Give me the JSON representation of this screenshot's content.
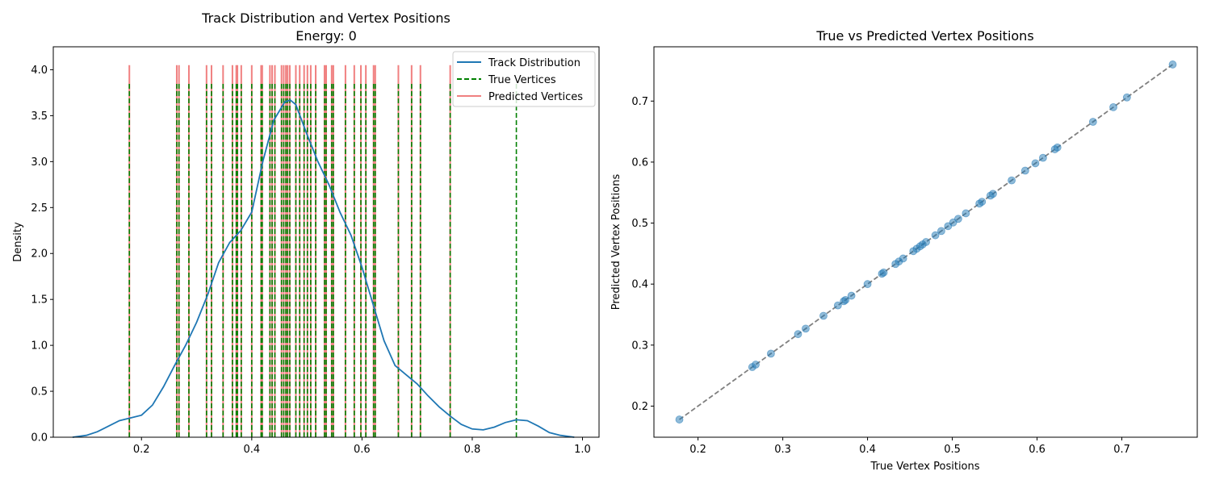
{
  "chart_data": [
    {
      "type": "line",
      "title": "Track Distribution and Vertex Positions",
      "subtitle": "Energy: 0",
      "xlabel": "",
      "ylabel": "Density",
      "xlim": [
        0.04,
        1.03
      ],
      "ylim": [
        0,
        4.25
      ],
      "xticks": [
        "0.2",
        "0.4",
        "0.6",
        "0.8",
        "1.0"
      ],
      "yticks": [
        "0.0",
        "0.5",
        "1.0",
        "1.5",
        "2.0",
        "2.5",
        "3.0",
        "3.5",
        "4.0"
      ],
      "legend_position": "top-right",
      "legend": [
        "Track Distribution",
        "True Vertices",
        "Predicted Vertices"
      ],
      "colors": {
        "kde": "#1f77b4",
        "true": "#008000",
        "pred": "#f08080"
      },
      "kde": {
        "x": [
          0.075,
          0.1,
          0.12,
          0.14,
          0.16,
          0.18,
          0.2,
          0.22,
          0.24,
          0.26,
          0.28,
          0.3,
          0.32,
          0.34,
          0.36,
          0.38,
          0.4,
          0.42,
          0.44,
          0.46,
          0.47,
          0.48,
          0.5,
          0.52,
          0.54,
          0.56,
          0.58,
          0.6,
          0.62,
          0.64,
          0.66,
          0.68,
          0.7,
          0.72,
          0.74,
          0.76,
          0.78,
          0.8,
          0.82,
          0.84,
          0.86,
          0.88,
          0.9,
          0.92,
          0.94,
          0.96,
          0.985
        ],
        "y": [
          0.0,
          0.02,
          0.06,
          0.12,
          0.18,
          0.21,
          0.24,
          0.35,
          0.55,
          0.78,
          1.0,
          1.25,
          1.55,
          1.9,
          2.12,
          2.25,
          2.45,
          3.0,
          3.45,
          3.65,
          3.67,
          3.62,
          3.3,
          3.0,
          2.75,
          2.45,
          2.2,
          1.85,
          1.45,
          1.05,
          0.78,
          0.68,
          0.58,
          0.45,
          0.33,
          0.23,
          0.14,
          0.09,
          0.08,
          0.11,
          0.16,
          0.19,
          0.18,
          0.12,
          0.05,
          0.02,
          0.0
        ]
      },
      "true_vertices": [
        0.178,
        0.264,
        0.268,
        0.286,
        0.318,
        0.327,
        0.348,
        0.365,
        0.372,
        0.374,
        0.381,
        0.4,
        0.417,
        0.419,
        0.433,
        0.437,
        0.442,
        0.454,
        0.458,
        0.462,
        0.465,
        0.469,
        0.48,
        0.487,
        0.495,
        0.501,
        0.507,
        0.516,
        0.532,
        0.535,
        0.545,
        0.548,
        0.57,
        0.586,
        0.598,
        0.607,
        0.621,
        0.624,
        0.666,
        0.69,
        0.706,
        0.76,
        0.88
      ],
      "predicted_vertices": [
        0.178,
        0.264,
        0.268,
        0.286,
        0.318,
        0.327,
        0.348,
        0.365,
        0.372,
        0.374,
        0.381,
        0.4,
        0.417,
        0.419,
        0.433,
        0.437,
        0.442,
        0.454,
        0.458,
        0.462,
        0.465,
        0.469,
        0.48,
        0.487,
        0.495,
        0.501,
        0.507,
        0.516,
        0.532,
        0.535,
        0.545,
        0.548,
        0.57,
        0.586,
        0.598,
        0.607,
        0.621,
        0.624,
        0.666,
        0.69,
        0.706,
        0.76
      ]
    },
    {
      "type": "scatter",
      "title": "True vs Predicted Vertex Positions",
      "xlabel": "True Vertex Positions",
      "ylabel": "Predicted Vertex Positions",
      "xlim": [
        0.148,
        0.789
      ],
      "ylim": [
        0.149,
        0.789
      ],
      "xticks": [
        "0.2",
        "0.3",
        "0.4",
        "0.5",
        "0.6",
        "0.7"
      ],
      "yticks": [
        "0.2",
        "0.3",
        "0.4",
        "0.5",
        "0.6",
        "0.7"
      ],
      "colors": {
        "points": "#1f77b4",
        "diagonal": "#808080"
      },
      "diagonal": [
        [
          0.178,
          0.178
        ],
        [
          0.76,
          0.76
        ]
      ],
      "x": [
        0.178,
        0.264,
        0.268,
        0.286,
        0.318,
        0.327,
        0.348,
        0.365,
        0.372,
        0.374,
        0.381,
        0.4,
        0.417,
        0.419,
        0.433,
        0.437,
        0.442,
        0.454,
        0.458,
        0.462,
        0.465,
        0.469,
        0.48,
        0.487,
        0.495,
        0.501,
        0.507,
        0.516,
        0.532,
        0.535,
        0.545,
        0.548,
        0.57,
        0.586,
        0.598,
        0.607,
        0.621,
        0.624,
        0.666,
        0.69,
        0.706,
        0.76
      ],
      "y": [
        0.178,
        0.264,
        0.268,
        0.286,
        0.318,
        0.327,
        0.348,
        0.365,
        0.372,
        0.374,
        0.381,
        0.4,
        0.417,
        0.419,
        0.433,
        0.437,
        0.442,
        0.454,
        0.458,
        0.462,
        0.465,
        0.469,
        0.48,
        0.487,
        0.495,
        0.501,
        0.507,
        0.516,
        0.532,
        0.535,
        0.545,
        0.548,
        0.57,
        0.586,
        0.598,
        0.607,
        0.621,
        0.624,
        0.666,
        0.69,
        0.706,
        0.76
      ]
    }
  ]
}
